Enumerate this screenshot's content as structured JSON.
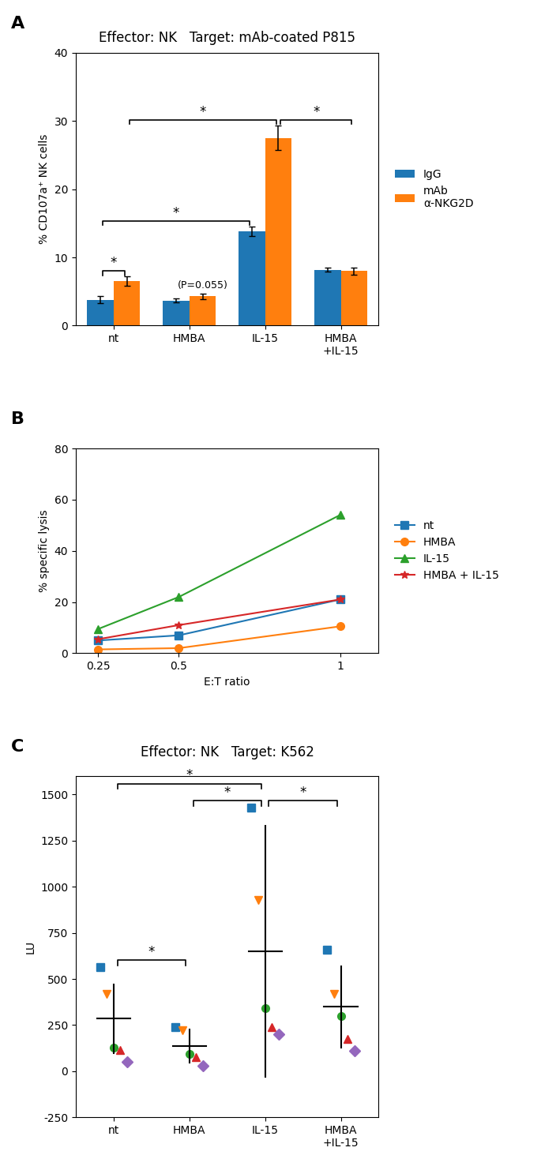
{
  "chart_data": [
    {
      "type": "bar",
      "title": "Effector: NK   Target: mAb-coated P815",
      "categories": [
        "nt",
        "HMBA",
        "IL-15",
        "HMBA\n+IL-15"
      ],
      "series": [
        {
          "name": "IgG",
          "values": [
            3.8,
            3.7,
            13.8,
            8.2
          ],
          "errors": [
            0.5,
            0.3,
            0.7,
            0.3
          ]
        },
        {
          "name": "mAb\nα-NKG2D",
          "values": [
            6.5,
            4.3,
            27.5,
            8.0
          ],
          "errors": [
            0.7,
            0.4,
            1.8,
            0.5
          ]
        }
      ],
      "y_label": "% CD107a⁺ NK cells",
      "ylim": [
        0,
        40
      ],
      "yticks": [
        0,
        10,
        20,
        30,
        40
      ],
      "legend": "right",
      "annotations": [
        {
          "text": "A"
        },
        {
          "text": "*",
          "from": {
            "category": "nt",
            "series": "IgG"
          },
          "to": {
            "category": "nt",
            "series": "mAb\nα-NKG2D"
          }
        },
        {
          "text": "(P=0.055)",
          "category": "HMBA",
          "series": "mAb\nα-NKG2D"
        },
        {
          "text": "*",
          "from": {
            "category": "nt",
            "series": "IgG"
          },
          "to": {
            "category": "IL-15",
            "series": "IgG"
          }
        },
        {
          "text": "*",
          "from": {
            "category": "IL-15",
            "series": "mAb\nα-NKG2D"
          },
          "to": {
            "category": "HMBA\n+IL-15",
            "series": "mAb\nα-NKG2D"
          }
        },
        {
          "text": "*",
          "from": {
            "category": "nt",
            "series": "mAb\nα-NKG2D"
          },
          "to": {
            "category": "IL-15",
            "series": "mAb\nα-NKG2D"
          }
        }
      ]
    },
    {
      "type": "line",
      "x": [
        0.25,
        0.5,
        1.0
      ],
      "series": [
        {
          "name": "nt",
          "marker": "square",
          "values": [
            5.0,
            7.0,
            21.0
          ]
        },
        {
          "name": "HMBA",
          "marker": "circle",
          "values": [
            1.5,
            2.0,
            10.5
          ]
        },
        {
          "name": "IL-15",
          "marker": "triangle_up",
          "values": [
            9.5,
            22.0,
            54.0
          ]
        },
        {
          "name": "HMBA + IL-15",
          "marker": "star",
          "values": [
            5.5,
            11.0,
            21.0
          ]
        }
      ],
      "x_label": "E:T ratio",
      "y_label": "% specific lysis",
      "xlim": [
        0.18,
        1.12
      ],
      "xticks": [
        0.25,
        0.5,
        {
          "value": 1.0,
          "label": "1"
        }
      ],
      "ylim": [
        0,
        80
      ],
      "yticks": [
        0,
        20,
        40,
        60,
        80
      ],
      "legend": "right",
      "annotations": [
        {
          "text": "B"
        }
      ]
    },
    {
      "type": "scatter",
      "title": "Effector: NK   Target: K562",
      "categories": [
        "nt",
        "HMBA",
        "IL-15",
        "HMBA\n+IL-15"
      ],
      "series": [
        {
          "marker": "square",
          "values": [
            565,
            240,
            1430,
            660
          ]
        },
        {
          "marker": "triangle_down",
          "values": [
            420,
            220,
            930,
            420
          ]
        },
        {
          "marker": "circle",
          "values": [
            130,
            95,
            340,
            300
          ]
        },
        {
          "marker": "triangle_up",
          "values": [
            115,
            75,
            240,
            175
          ]
        },
        {
          "marker": "diamond",
          "values": [
            50,
            30,
            200,
            110
          ]
        }
      ],
      "mean": [
        285,
        135,
        650,
        350
      ],
      "sd": [
        185,
        90,
        680,
        220
      ],
      "y_label": "LU",
      "ylim": [
        -250,
        1600
      ],
      "yticks": [
        -250,
        0,
        250,
        500,
        750,
        1000,
        1250,
        1500
      ],
      "annotations": [
        {
          "text": "C"
        },
        {
          "text": "*",
          "from": "nt",
          "to": "HMBA"
        },
        {
          "text": "*",
          "from": "HMBA",
          "to": "IL-15"
        },
        {
          "text": "*",
          "from": "IL-15",
          "to": "HMBA\n+IL-15"
        },
        {
          "text": "*",
          "from": "nt",
          "to": "IL-15"
        }
      ]
    }
  ]
}
